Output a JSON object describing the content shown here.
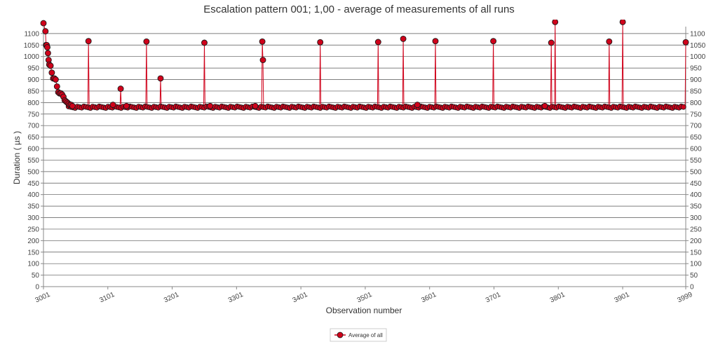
{
  "chart_data": {
    "type": "line",
    "title": "Escalation pattern 001; 1,00 - average of measurements of all runs",
    "xlabel": "Observation number",
    "ylabel": "Duration ( µs )",
    "xlim": [
      3001,
      3999
    ],
    "ylim": [
      0,
      1130
    ],
    "x_ticks": [
      "3001",
      "3101",
      "3201",
      "3301",
      "3401",
      "3501",
      "3601",
      "3701",
      "3801",
      "3901",
      "3999"
    ],
    "y_ticks": [
      "0",
      "50",
      "100",
      "150",
      "200",
      "250",
      "300",
      "350",
      "400",
      "450",
      "500",
      "550",
      "600",
      "650",
      "700",
      "750",
      "800",
      "850",
      "900",
      "950",
      "1000",
      "1050",
      "1100"
    ],
    "grid": true,
    "legend": {
      "position": "bottom-center",
      "entries": [
        "Average of all"
      ]
    },
    "colors": {
      "line": "#d0021b",
      "marker_fill": "#d0021b",
      "marker_stroke": "#1a1a1a",
      "grid": "#555555",
      "axis": "#888888"
    },
    "series": [
      {
        "name": "Average of all",
        "baseline": 780,
        "points": [
          [
            3001,
            1145
          ],
          [
            3004,
            1110
          ],
          [
            3005,
            1050
          ],
          [
            3006,
            1050
          ],
          [
            3007,
            1040
          ],
          [
            3008,
            1015
          ],
          [
            3009,
            985
          ],
          [
            3010,
            965
          ],
          [
            3012,
            960
          ],
          [
            3014,
            930
          ],
          [
            3016,
            905
          ],
          [
            3018,
            905
          ],
          [
            3020,
            900
          ],
          [
            3022,
            870
          ],
          [
            3024,
            845
          ],
          [
            3026,
            840
          ],
          [
            3028,
            840
          ],
          [
            3030,
            835
          ],
          [
            3032,
            825
          ],
          [
            3034,
            810
          ],
          [
            3036,
            805
          ],
          [
            3038,
            800
          ],
          [
            3040,
            795
          ],
          [
            3042,
            790
          ],
          [
            3044,
            790
          ],
          [
            3046,
            785
          ],
          [
            3048,
            780
          ],
          [
            3050,
            780
          ],
          [
            3060,
            780
          ],
          [
            3070,
            780
          ],
          [
            3071,
            1067
          ],
          [
            3072,
            780
          ],
          [
            3080,
            780
          ],
          [
            3090,
            780
          ],
          [
            3100,
            780
          ],
          [
            3108,
            780
          ],
          [
            3109,
            790
          ],
          [
            3110,
            780
          ],
          [
            3120,
            780
          ],
          [
            3121,
            860
          ],
          [
            3122,
            780
          ],
          [
            3130,
            785
          ],
          [
            3140,
            780
          ],
          [
            3150,
            780
          ],
          [
            3160,
            780
          ],
          [
            3161,
            1065
          ],
          [
            3162,
            780
          ],
          [
            3170,
            780
          ],
          [
            3182,
            780
          ],
          [
            3183,
            905
          ],
          [
            3184,
            780
          ],
          [
            3190,
            780
          ],
          [
            3200,
            780
          ],
          [
            3220,
            780
          ],
          [
            3240,
            780
          ],
          [
            3250,
            780
          ],
          [
            3251,
            1060
          ],
          [
            3252,
            780
          ],
          [
            3260,
            785
          ],
          [
            3280,
            780
          ],
          [
            3300,
            780
          ],
          [
            3320,
            780
          ],
          [
            3330,
            785
          ],
          [
            3340,
            780
          ],
          [
            3341,
            1065
          ],
          [
            3342,
            985
          ],
          [
            3343,
            780
          ],
          [
            3360,
            780
          ],
          [
            3380,
            780
          ],
          [
            3400,
            780
          ],
          [
            3420,
            780
          ],
          [
            3430,
            780
          ],
          [
            3431,
            1062
          ],
          [
            3432,
            780
          ],
          [
            3450,
            780
          ],
          [
            3470,
            780
          ],
          [
            3490,
            780
          ],
          [
            3510,
            780
          ],
          [
            3520,
            780
          ],
          [
            3521,
            1063
          ],
          [
            3522,
            780
          ],
          [
            3540,
            780
          ],
          [
            3559,
            780
          ],
          [
            3560,
            1077
          ],
          [
            3561,
            780
          ],
          [
            3570,
            780
          ],
          [
            3580,
            780
          ],
          [
            3582,
            790
          ],
          [
            3584,
            780
          ],
          [
            3600,
            780
          ],
          [
            3609,
            780
          ],
          [
            3610,
            1067
          ],
          [
            3611,
            780
          ],
          [
            3630,
            780
          ],
          [
            3650,
            780
          ],
          [
            3670,
            780
          ],
          [
            3690,
            780
          ],
          [
            3699,
            780
          ],
          [
            3700,
            1067
          ],
          [
            3701,
            780
          ],
          [
            3720,
            780
          ],
          [
            3740,
            780
          ],
          [
            3760,
            780
          ],
          [
            3780,
            785
          ],
          [
            3789,
            780
          ],
          [
            3790,
            1060
          ],
          [
            3791,
            780
          ],
          [
            3795,
            780
          ],
          [
            3796,
            1150
          ],
          [
            3797,
            780
          ],
          [
            3810,
            780
          ],
          [
            3830,
            780
          ],
          [
            3850,
            780
          ],
          [
            3870,
            780
          ],
          [
            3879,
            780
          ],
          [
            3880,
            1065
          ],
          [
            3881,
            780
          ],
          [
            3900,
            780
          ],
          [
            3901,
            1150
          ],
          [
            3902,
            780
          ],
          [
            3920,
            780
          ],
          [
            3940,
            780
          ],
          [
            3960,
            780
          ],
          [
            3980,
            780
          ],
          [
            3998,
            780
          ],
          [
            3999,
            1062
          ]
        ]
      }
    ]
  }
}
